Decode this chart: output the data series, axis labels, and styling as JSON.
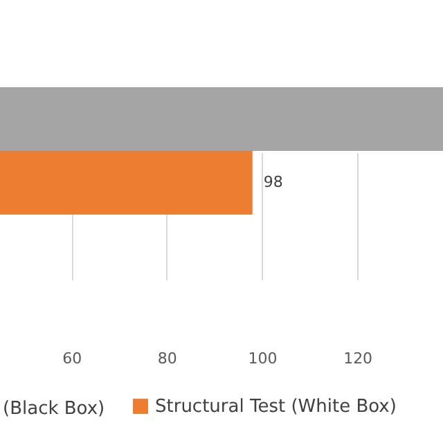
{
  "chart_data": {
    "type": "bar",
    "orientation": "horizontal",
    "categories": [
      null
    ],
    "series": [
      {
        "color": "#a5a5a5",
        "values": [
          138
        ],
        "value_labels": [
          null
        ]
      },
      {
        "name": "Structural Test (White Box)",
        "color": "#ed7d31",
        "values": [
          98
        ],
        "value_labels": [
          "98"
        ]
      }
    ],
    "xlim": [
      45,
      138
    ],
    "xticks": [
      60,
      80,
      100,
      120
    ],
    "grid": "x",
    "legend": "bottom",
    "annotations": [
      "(Black Box)"
    ]
  }
}
